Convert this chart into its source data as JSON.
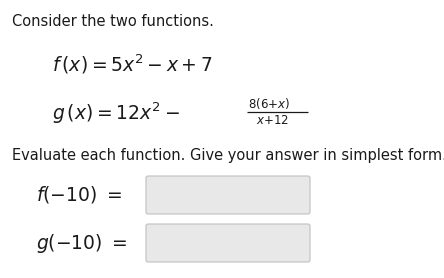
{
  "bg_color": "#ffffff",
  "text_color": "#1a1a1a",
  "box_face": "#e8e8e8",
  "box_edge": "#c0c0c0",
  "title": "Consider the two functions.",
  "evaluate_text": "Evaluate each function. Give your answer in simplest form.",
  "fig_width": 4.44,
  "fig_height": 2.78,
  "dpi": 100
}
